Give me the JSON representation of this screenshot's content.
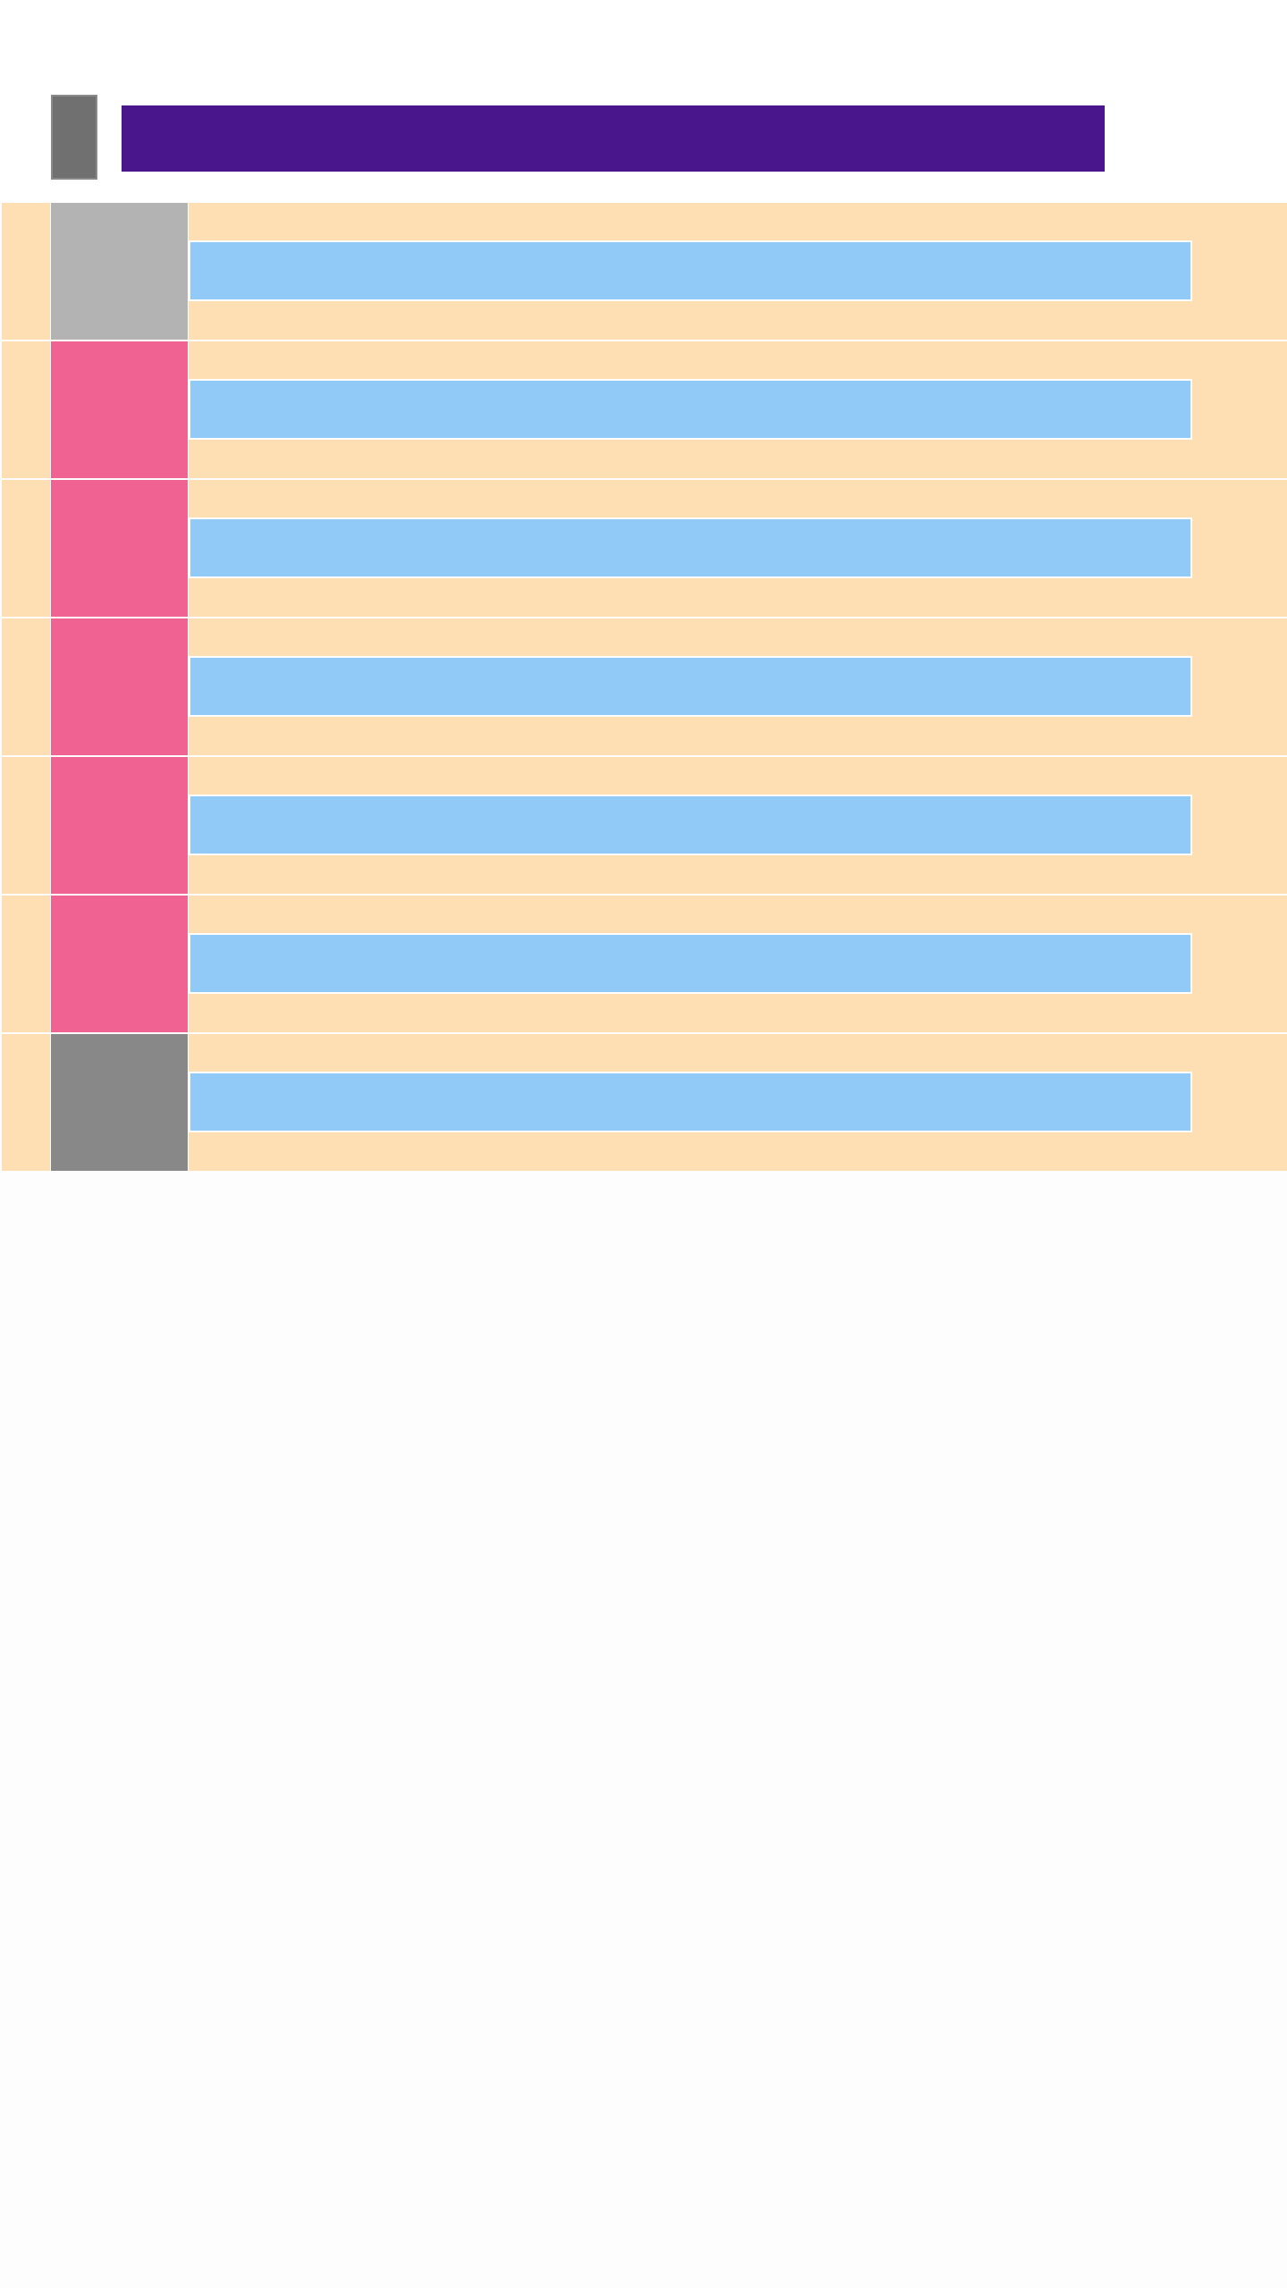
{
  "header": {
    "menu_icon": "menu-icon",
    "title": ""
  },
  "colors": {
    "header_background": "#ffffff",
    "title_bar": "#4a168b",
    "menu_icon": "#707070",
    "row_background": "#fddfb3",
    "row_field": "#91c9f7",
    "page_background": "#fdfdfd"
  },
  "list": {
    "items": [
      {
        "thumbnail_color": "#b3b3b3",
        "field_text": ""
      },
      {
        "thumbnail_color": "#f06292",
        "field_text": ""
      },
      {
        "thumbnail_color": "#f06292",
        "field_text": ""
      },
      {
        "thumbnail_color": "#f06292",
        "field_text": ""
      },
      {
        "thumbnail_color": "#f06292",
        "field_text": ""
      },
      {
        "thumbnail_color": "#f06292",
        "field_text": ""
      },
      {
        "thumbnail_color": "#888888",
        "field_text": ""
      }
    ]
  }
}
